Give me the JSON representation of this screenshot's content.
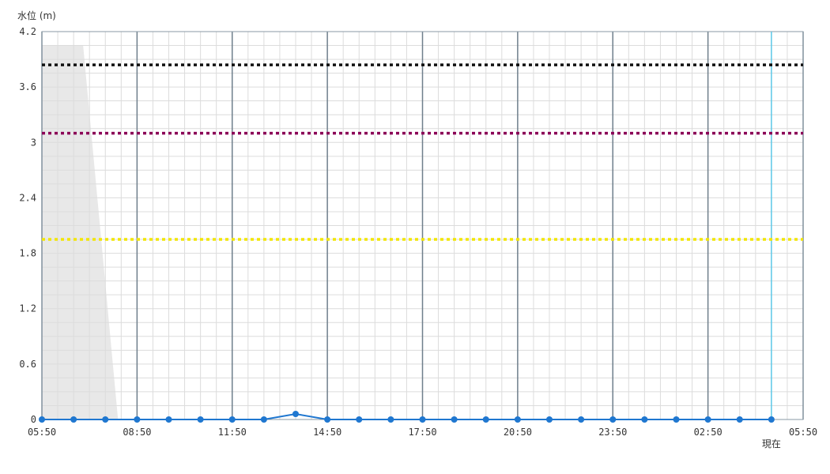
{
  "chart_data": {
    "type": "line",
    "ylabel": "水位 (m)",
    "ylim": [
      0,
      4.2
    ],
    "y_ticks": [
      "0",
      "0.6",
      "1.2",
      "1.8",
      "2.4",
      "3",
      "3.6",
      "4.2"
    ],
    "x_tick_labels": [
      "05:50",
      "08:50",
      "11:50",
      "14:50",
      "17:50",
      "20:50",
      "23:50",
      "02:50",
      "05:50"
    ],
    "now_label": "現在",
    "grid": true,
    "series": [
      {
        "color": "#1f77d0",
        "x_hours": [
          0,
          1,
          2,
          3,
          4,
          5,
          6,
          7,
          8,
          9,
          10,
          11,
          12,
          13,
          14,
          15,
          16,
          17,
          18,
          19,
          20,
          21,
          22,
          23
        ],
        "values": [
          0,
          0,
          0,
          0,
          0,
          0,
          0,
          0,
          0.06,
          0,
          0,
          0,
          0,
          0,
          0,
          0,
          0,
          0,
          0,
          0,
          0,
          0,
          0,
          0
        ]
      }
    ],
    "threshold_lines": [
      {
        "value": 3.84,
        "color": "#111111"
      },
      {
        "value": 3.1,
        "color": "#8b0057"
      },
      {
        "value": 1.95,
        "color": "#f2e600"
      }
    ],
    "shaded_region": {
      "color": "#e8e8e8",
      "points": [
        [
          0,
          0
        ],
        [
          0,
          4.05
        ],
        [
          1.3,
          4.05
        ],
        [
          2.4,
          0
        ]
      ]
    },
    "now_marker_hour": 23,
    "now_marker_color": "#5bc8e8"
  }
}
